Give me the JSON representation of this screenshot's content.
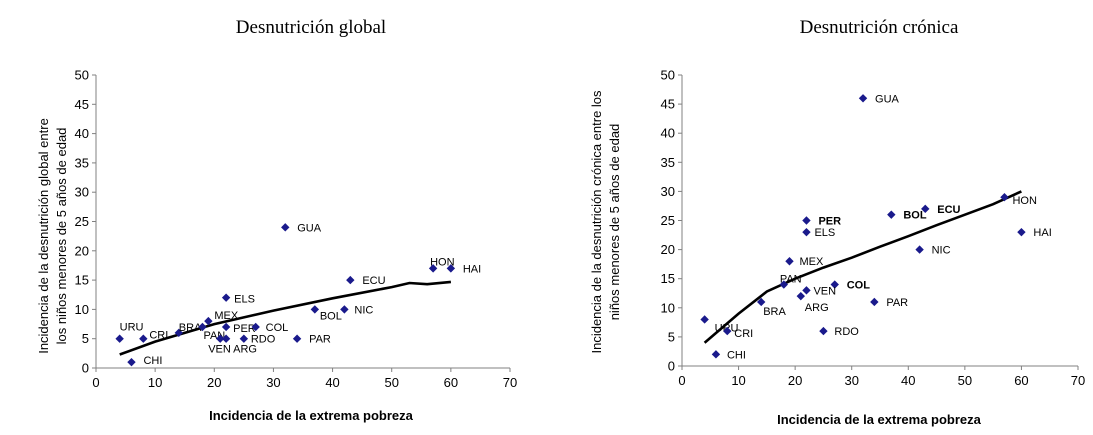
{
  "chart_data": [
    {
      "type": "scatter",
      "title": "Desnutrición global",
      "xlabel": "Incidencia de la extrema pobreza",
      "ylabel_lines": [
        "Incidencia de la desnutrición global entre",
        "los niños menores de 5 años de edad"
      ],
      "xlim": [
        0,
        70
      ],
      "ylim": [
        0,
        50
      ],
      "xticks": [
        0,
        10,
        20,
        30,
        40,
        50,
        60,
        70
      ],
      "yticks": [
        0,
        5,
        10,
        15,
        20,
        25,
        30,
        35,
        40,
        45,
        50
      ],
      "grid": false,
      "marker_color": "#1a1a8c",
      "points": [
        {
          "label": "URU",
          "x": 4,
          "y": 5,
          "dx": 0,
          "dy": -12
        },
        {
          "label": "CRI",
          "x": 8,
          "y": 5,
          "dx": 6,
          "dy": -4
        },
        {
          "label": "BRA",
          "x": 14,
          "y": 6,
          "dx": 0,
          "dy": -6
        },
        {
          "label": "CHI",
          "x": 6,
          "y": 1,
          "dx": 12,
          "dy": -2
        },
        {
          "label": "MEX",
          "x": 19,
          "y": 8,
          "dx": 6,
          "dy": -6
        },
        {
          "label": "PAN",
          "x": 18,
          "y": 7,
          "dx": 1,
          "dy": 8
        },
        {
          "label": "ELS",
          "x": 22,
          "y": 12,
          "dx": 8,
          "dy": 1
        },
        {
          "label": "PER",
          "x": 22,
          "y": 7,
          "dx": 7,
          "dy": 1
        },
        {
          "label": "VEN",
          "x": 21,
          "y": 5,
          "dx": -12,
          "dy": 10
        },
        {
          "label": "ARG",
          "x": 22,
          "y": 5,
          "dx": 7,
          "dy": 10
        },
        {
          "label": "RDO",
          "x": 25,
          "y": 5,
          "dx": 7,
          "dy": 0
        },
        {
          "label": "COL",
          "x": 27,
          "y": 7,
          "dx": 10,
          "dy": 0
        },
        {
          "label": "PAR",
          "x": 34,
          "y": 5,
          "dx": 12,
          "dy": 0
        },
        {
          "label": "BOL",
          "x": 37,
          "y": 10,
          "dx": 5,
          "dy": 6
        },
        {
          "label": "NIC",
          "x": 42,
          "y": 10,
          "dx": 10,
          "dy": 0
        },
        {
          "label": "ECU",
          "x": 43,
          "y": 15,
          "dx": 12,
          "dy": 0
        },
        {
          "label": "GUA",
          "x": 32,
          "y": 24,
          "dx": 12,
          "dy": 0
        },
        {
          "label": "HON",
          "x": 57,
          "y": 17,
          "dx": -3,
          "dy": -7
        },
        {
          "label": "HAI",
          "x": 60,
          "y": 17,
          "dx": 12,
          "dy": 0
        }
      ],
      "trendline": {
        "x": [
          4,
          10,
          20,
          30,
          40,
          50,
          53,
          56,
          60
        ],
        "y": [
          2.3,
          4.5,
          7.5,
          9.8,
          11.9,
          13.8,
          14.5,
          14.3,
          14.7
        ]
      }
    },
    {
      "type": "scatter",
      "title": "Desnutrición crónica",
      "xlabel": "Incidencia de la extrema pobreza",
      "ylabel_lines": [
        "Incidencia de la desnutrición crónica entre los",
        "niños menores de 5 años de edad"
      ],
      "xlim": [
        0,
        70
      ],
      "ylim": [
        0,
        50
      ],
      "xticks": [
        0,
        10,
        20,
        30,
        40,
        50,
        60,
        70
      ],
      "yticks": [
        0,
        5,
        10,
        15,
        20,
        25,
        30,
        35,
        40,
        45,
        50
      ],
      "grid": false,
      "marker_color": "#1a1a8c",
      "points": [
        {
          "label": "GUA",
          "x": 32,
          "y": 46,
          "dx": 12,
          "dy": 0
        },
        {
          "label": "HON",
          "x": 57,
          "y": 29,
          "dx": 8,
          "dy": 3
        },
        {
          "label": "HAI",
          "x": 60,
          "y": 23,
          "dx": 12,
          "dy": 0
        },
        {
          "label": "ECU",
          "x": 43,
          "y": 27,
          "dx": 12,
          "dy": 0,
          "bold": true
        },
        {
          "label": "BOL",
          "x": 37,
          "y": 26,
          "dx": 12,
          "dy": 0,
          "bold": true
        },
        {
          "label": "NIC",
          "x": 42,
          "y": 20,
          "dx": 12,
          "dy": 0
        },
        {
          "label": "PER",
          "x": 22,
          "y": 25,
          "dx": 12,
          "dy": 0,
          "bold": true
        },
        {
          "label": "ELS",
          "x": 22,
          "y": 23,
          "dx": 8,
          "dy": 0
        },
        {
          "label": "MEX",
          "x": 19,
          "y": 18,
          "dx": 10,
          "dy": 0
        },
        {
          "label": "PAN",
          "x": 18,
          "y": 14,
          "dx": -4,
          "dy": -6
        },
        {
          "label": "COL",
          "x": 27,
          "y": 14,
          "dx": 12,
          "dy": 0,
          "bold": true
        },
        {
          "label": "VEN",
          "x": 22,
          "y": 13,
          "dx": 7,
          "dy": 0
        },
        {
          "label": "ARG",
          "x": 21,
          "y": 12,
          "dx": 4,
          "dy": 11
        },
        {
          "label": "BRA",
          "x": 14,
          "y": 11,
          "dx": 2,
          "dy": 9
        },
        {
          "label": "PAR",
          "x": 34,
          "y": 11,
          "dx": 12,
          "dy": 0
        },
        {
          "label": "URU",
          "x": 4,
          "y": 8,
          "dx": 10,
          "dy": 8
        },
        {
          "label": "CRI",
          "x": 8,
          "y": 6,
          "dx": 7,
          "dy": 2
        },
        {
          "label": "RDO",
          "x": 25,
          "y": 6,
          "dx": 11,
          "dy": 0
        },
        {
          "label": "CHI",
          "x": 6,
          "y": 2,
          "dx": 11,
          "dy": 0
        }
      ],
      "trendline": {
        "x": [
          4,
          10,
          15,
          20,
          25,
          30,
          35,
          40,
          45,
          50,
          55,
          60
        ],
        "y": [
          4,
          9,
          12.8,
          15,
          16.9,
          18.6,
          20.5,
          22.3,
          24.2,
          26,
          27.8,
          30
        ]
      }
    }
  ]
}
